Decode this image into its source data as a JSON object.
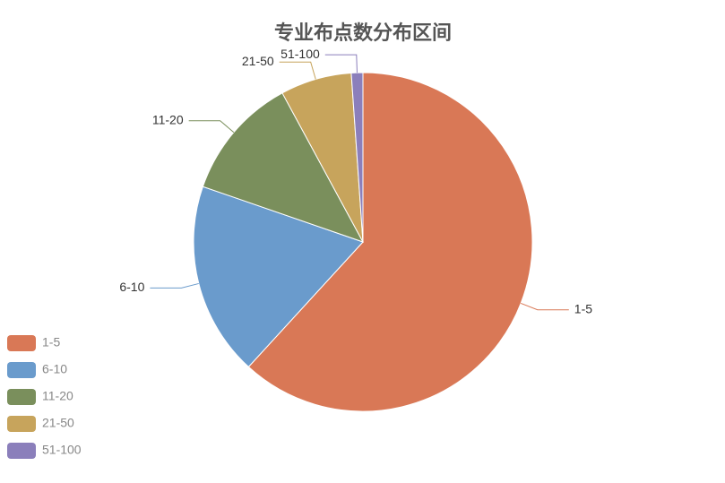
{
  "chart_data": {
    "type": "pie",
    "title": "专业布点数分布区间",
    "categories": [
      "1-5",
      "6-10",
      "11-20",
      "21-50",
      "51-100"
    ],
    "values": [
      61.8,
      18.5,
      11.8,
      6.8,
      1.1
    ],
    "colors": [
      "#d97856",
      "#6a9bcc",
      "#7a8f5c",
      "#c7a45c",
      "#8b7fbb"
    ],
    "legend": "bottom-left"
  }
}
